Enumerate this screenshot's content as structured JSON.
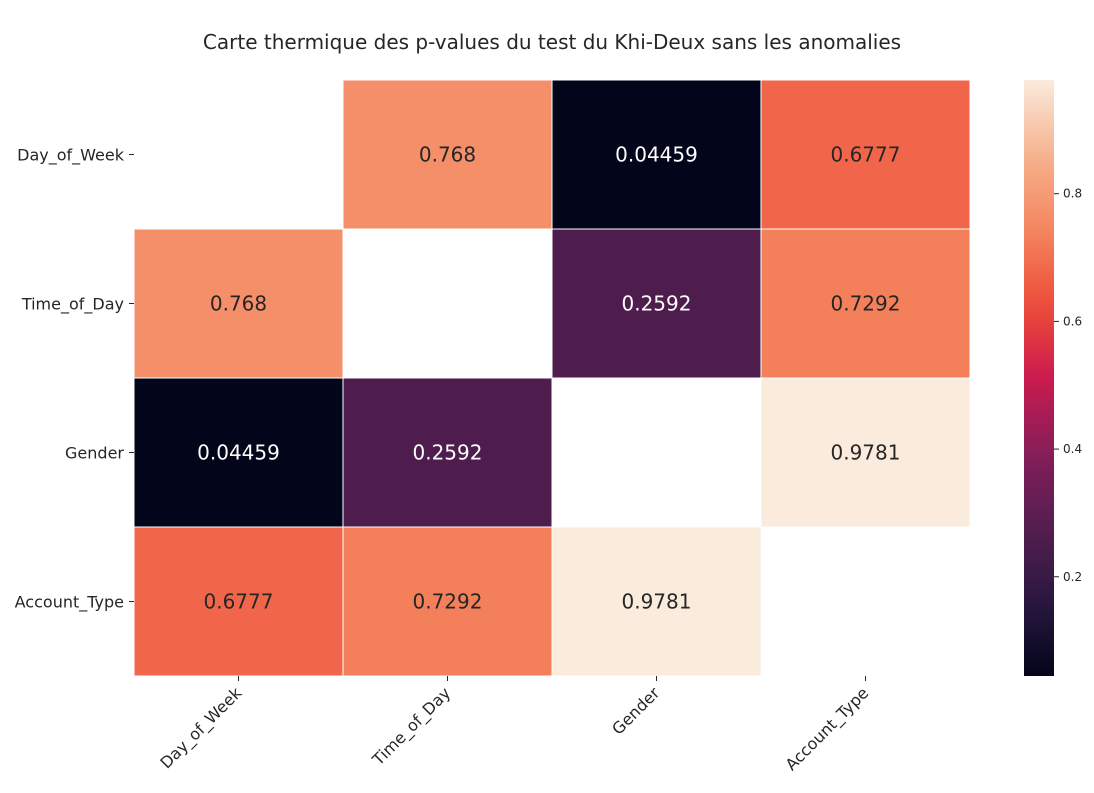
{
  "chart_data": {
    "type": "heatmap",
    "title": "Carte thermique des p-values du test du Khi-Deux sans les anomalies",
    "x_categories": [
      "Day_of_Week",
      "Time_of_Day",
      "Gender",
      "Account_Type"
    ],
    "y_categories": [
      "Day_of_Week",
      "Time_of_Day",
      "Gender",
      "Account_Type"
    ],
    "values": [
      [
        null,
        0.768,
        0.04459,
        0.6777
      ],
      [
        0.768,
        null,
        0.2592,
        0.7292
      ],
      [
        0.04459,
        0.2592,
        null,
        0.9781
      ],
      [
        0.6777,
        0.7292,
        0.9781,
        null
      ]
    ],
    "value_labels": [
      [
        "",
        "0.768",
        "0.04459",
        "0.6777"
      ],
      [
        "0.768",
        "",
        "0.2592",
        "0.7292"
      ],
      [
        "0.04459",
        "0.2592",
        "",
        "0.9781"
      ],
      [
        "0.6777",
        "0.7292",
        "0.9781",
        ""
      ]
    ],
    "colorbar": {
      "colormap": "rocket",
      "vmin": 0.04459,
      "vmax": 0.9781,
      "ticks": [
        0.2,
        0.4,
        0.6,
        0.8
      ],
      "tick_labels": [
        "0.2",
        "0.4",
        "0.6",
        "0.8"
      ]
    },
    "diagonal_masked": true,
    "grid": false,
    "legend_position": "right"
  }
}
